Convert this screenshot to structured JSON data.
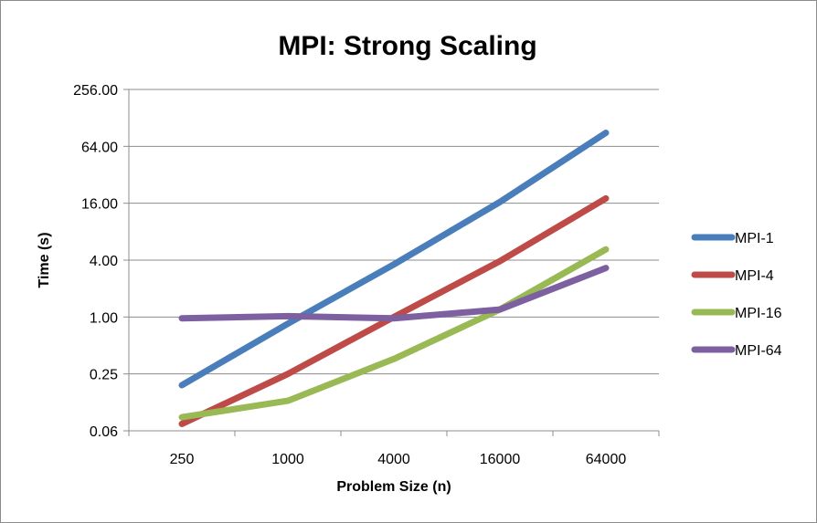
{
  "chart_data": {
    "type": "line",
    "title": "MPI: Strong Scaling",
    "xlabel": "Problem Size (n)",
    "ylabel": "Time (s)",
    "y_scale": "log2",
    "ylim": [
      0.0625,
      256
    ],
    "y_ticks": [
      0.0625,
      0.25,
      1,
      4,
      16,
      64,
      256
    ],
    "y_tick_labels": [
      "0.06",
      "0.25",
      "1.00",
      "4.00",
      "16.00",
      "64.00",
      "256.00"
    ],
    "categories": [
      "250",
      "1000",
      "4000",
      "16000",
      "64000"
    ],
    "grid": true,
    "legend_position": "right",
    "series": [
      {
        "name": "MPI-1",
        "color": "#4a7ebb",
        "values": [
          0.19,
          0.85,
          3.6,
          16.5,
          89
        ]
      },
      {
        "name": "MPI-4",
        "color": "#be4b48",
        "values": [
          0.074,
          0.25,
          1.0,
          3.9,
          18
        ]
      },
      {
        "name": "MPI-16",
        "color": "#98b954",
        "values": [
          0.087,
          0.13,
          0.36,
          1.2,
          5.2
        ]
      },
      {
        "name": "MPI-64",
        "color": "#7d60a0",
        "values": [
          0.97,
          1.02,
          0.97,
          1.2,
          3.3
        ]
      }
    ]
  }
}
